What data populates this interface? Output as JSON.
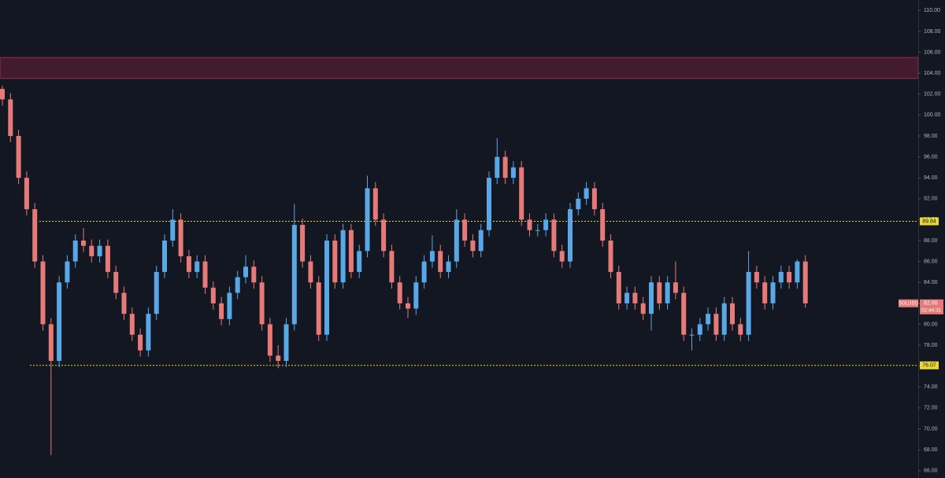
{
  "chart_data": {
    "type": "candlestick",
    "symbol": "SOLUSD",
    "last_price": {
      "value": 82,
      "label": "82.00"
    },
    "countdown": "02:44:31",
    "up_color": "#5aa7e6",
    "down_color": "#e57a78",
    "ylim": [
      65.3,
      111
    ],
    "yticks": [
      {
        "value": 66,
        "label": "66.00"
      },
      {
        "value": 68,
        "label": "68.00"
      },
      {
        "value": 70,
        "label": "70.00"
      },
      {
        "value": 72,
        "label": "72.00"
      },
      {
        "value": 74,
        "label": "74.00"
      },
      {
        "value": 76,
        "label": "76.00"
      },
      {
        "value": 78,
        "label": "78.00"
      },
      {
        "value": 80,
        "label": "80.00"
      },
      {
        "value": 82,
        "label": "82.00"
      },
      {
        "value": 84,
        "label": "84.00"
      },
      {
        "value": 86,
        "label": "86.00"
      },
      {
        "value": 88,
        "label": "88.00"
      },
      {
        "value": 90,
        "label": "90.00"
      },
      {
        "value": 92,
        "label": "92.00"
      },
      {
        "value": 94,
        "label": "94.00"
      },
      {
        "value": 96,
        "label": "96.00"
      },
      {
        "value": 98,
        "label": "98.00"
      },
      {
        "value": 100,
        "label": "100.00"
      },
      {
        "value": 102,
        "label": "102.00"
      },
      {
        "value": 104,
        "label": "104.00"
      },
      {
        "value": 106,
        "label": "106.00"
      },
      {
        "value": 108,
        "label": "108.00"
      },
      {
        "value": 110,
        "label": "110.00"
      }
    ],
    "levels": [
      {
        "value": 89.84,
        "label": "89.84"
      },
      {
        "value": 76.07,
        "label": "76.07"
      }
    ],
    "level_color": "#e8d93a",
    "zone": [
      103.5,
      105.5
    ],
    "zone_color": "#6b1f3c",
    "open": [
      102.5,
      101.5,
      98,
      94,
      91,
      86,
      80,
      76.5,
      84,
      86,
      88,
      87.5,
      86.5,
      87.5,
      85,
      83,
      81,
      79,
      77.5,
      81,
      85,
      88,
      90,
      86.5,
      85,
      86,
      83.5,
      82,
      80.5,
      83,
      84.5,
      85.5,
      84,
      80,
      77,
      76.5,
      80,
      89.5,
      86,
      84,
      79,
      88,
      84,
      89,
      85,
      87,
      93,
      90,
      87,
      84,
      82,
      81.5,
      84,
      86,
      87,
      85,
      86,
      90,
      88,
      87,
      89,
      94,
      96,
      94,
      95,
      90,
      89,
      89,
      90,
      87,
      86,
      91,
      92,
      93,
      91,
      88,
      85,
      82,
      83,
      82,
      81,
      84,
      82,
      84,
      83,
      79,
      79,
      80,
      81,
      79,
      82,
      80,
      79,
      85,
      84,
      82,
      84,
      85,
      84,
      86
    ],
    "high": [
      102.8,
      102.1,
      98.6,
      94.6,
      91.6,
      86.6,
      80.6,
      84.6,
      86.6,
      88.6,
      89.2,
      88.1,
      88.1,
      88.1,
      85.6,
      83.6,
      81.6,
      79.6,
      81.6,
      85.6,
      88.6,
      91,
      90.6,
      87.1,
      86.6,
      86.6,
      84.1,
      82.6,
      83.6,
      85.1,
      86.6,
      86.1,
      84.6,
      80.6,
      78,
      80.6,
      91.5,
      90.1,
      86.6,
      84.6,
      88.6,
      88.6,
      89.6,
      89.6,
      87.6,
      94.2,
      93.6,
      90.6,
      87.6,
      84.6,
      82.6,
      84.6,
      86.6,
      88.5,
      87.6,
      86.6,
      91,
      90.6,
      88.6,
      89.6,
      94.6,
      97.8,
      96.6,
      95.6,
      95.6,
      90.6,
      89.6,
      90.6,
      90.6,
      87.6,
      91.6,
      92.6,
      93.6,
      93.6,
      91.6,
      88.6,
      85.6,
      83.6,
      83.6,
      82.6,
      84.6,
      84.6,
      84.6,
      86,
      83.6,
      79.6,
      80.6,
      81.6,
      81.6,
      82.6,
      82.6,
      80.6,
      87,
      85.6,
      84.6,
      84.6,
      85.6,
      85.6,
      86.2,
      86.6
    ],
    "low": [
      100.9,
      97.4,
      93.4,
      90.4,
      85.4,
      79.4,
      67.5,
      75.9,
      83.4,
      85.4,
      86.9,
      85.9,
      85.9,
      84.4,
      82.4,
      80.4,
      78.4,
      76.9,
      76.9,
      80.4,
      84.4,
      87.4,
      85.9,
      84.4,
      84.4,
      82.9,
      81.4,
      79.9,
      79.9,
      82.4,
      83.9,
      83.4,
      79.4,
      76.4,
      75.8,
      75.9,
      79.4,
      85.4,
      83.4,
      78.4,
      78.4,
      83.4,
      83.4,
      84.4,
      84.4,
      86.4,
      89.4,
      86.4,
      83.4,
      81.4,
      80.6,
      80.9,
      83.4,
      85.4,
      84.4,
      84.4,
      85.4,
      87.4,
      86.4,
      86.4,
      88.4,
      93.4,
      93.4,
      93.4,
      89.4,
      88.4,
      88.4,
      88.4,
      86.4,
      85.4,
      85.4,
      90.4,
      91.4,
      90.4,
      87.4,
      84.4,
      81.4,
      81.4,
      81.4,
      80.4,
      79.4,
      81.4,
      81.4,
      82.4,
      78.4,
      77.5,
      78.4,
      79.4,
      78.4,
      78.4,
      79.4,
      78.4,
      78.4,
      83.4,
      81.4,
      81.4,
      83.4,
      83.4,
      83.4,
      81.6
    ],
    "close": [
      101.5,
      98,
      94,
      91,
      86,
      80,
      76.5,
      84,
      86,
      88,
      87.5,
      86.5,
      87.5,
      85,
      83,
      81,
      79,
      77.5,
      81,
      85,
      88,
      90,
      86.5,
      85,
      86,
      83.5,
      82,
      80.5,
      83,
      84.5,
      85.5,
      84,
      80,
      77,
      76.5,
      80,
      89.5,
      86,
      84,
      79,
      88,
      84,
      89,
      85,
      87,
      93,
      90,
      87,
      84,
      82,
      81.5,
      84,
      86,
      87,
      85,
      86,
      90,
      88,
      87,
      89,
      94,
      96,
      94,
      95,
      90,
      89,
      89,
      90,
      87,
      86,
      91,
      92,
      93,
      91,
      88,
      85,
      82,
      83,
      82,
      81,
      84,
      82,
      84,
      83,
      79,
      79,
      80,
      81,
      79,
      82,
      80,
      79,
      85,
      84,
      82,
      84,
      85,
      84,
      86,
      82
    ]
  }
}
